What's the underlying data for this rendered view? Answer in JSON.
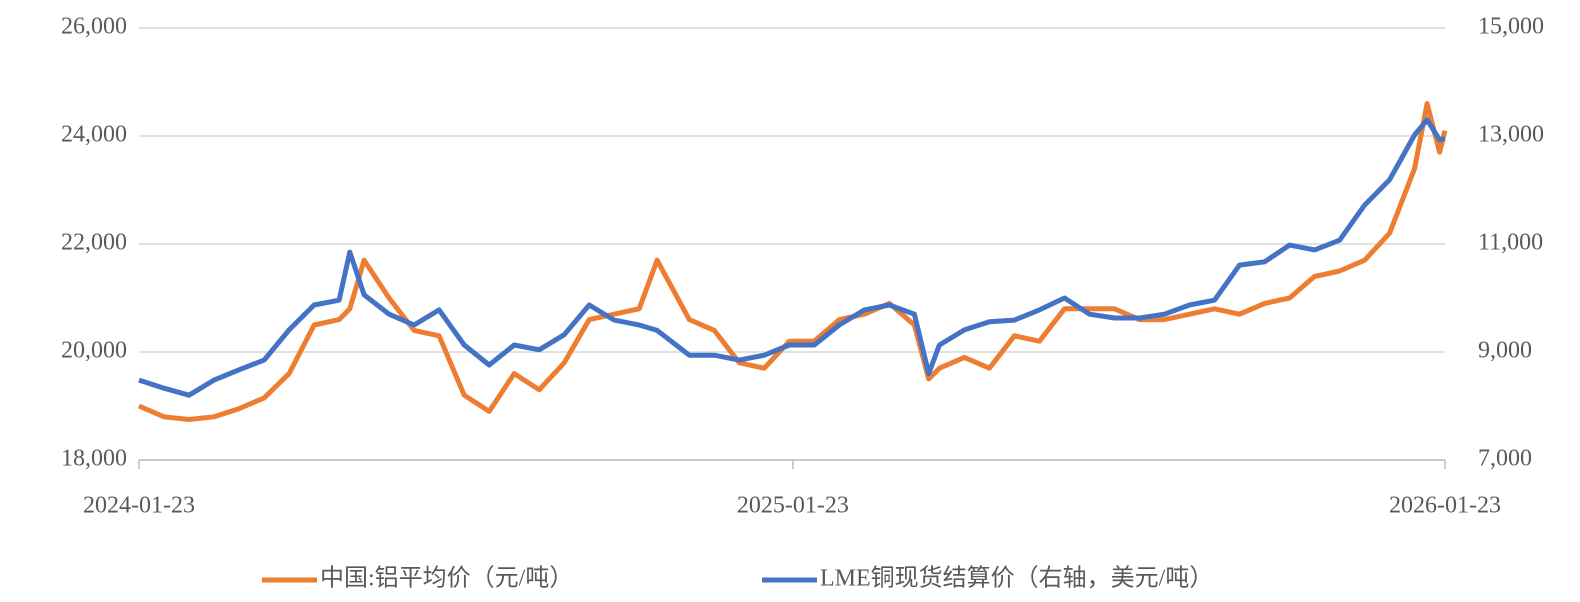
{
  "chart_data": {
    "type": "line",
    "x": [
      "2024-01-23",
      "2024-02-06",
      "2024-02-20",
      "2024-03-05",
      "2024-03-19",
      "2024-04-02",
      "2024-04-16",
      "2024-04-30",
      "2024-05-14",
      "2024-05-20",
      "2024-05-28",
      "2024-06-11",
      "2024-06-25",
      "2024-07-09",
      "2024-07-23",
      "2024-08-06",
      "2024-08-20",
      "2024-09-03",
      "2024-09-17",
      "2024-10-01",
      "2024-10-15",
      "2024-10-29",
      "2024-11-08",
      "2024-11-26",
      "2024-12-10",
      "2024-12-24",
      "2025-01-07",
      "2025-01-21",
      "2025-02-04",
      "2025-02-18",
      "2025-03-04",
      "2025-03-18",
      "2025-04-01",
      "2025-04-09",
      "2025-04-15",
      "2025-04-29",
      "2025-05-13",
      "2025-05-27",
      "2025-06-10",
      "2025-06-24",
      "2025-07-08",
      "2025-07-22",
      "2025-08-05",
      "2025-08-19",
      "2025-09-02",
      "2025-09-16",
      "2025-09-30",
      "2025-10-14",
      "2025-10-28",
      "2025-11-11",
      "2025-11-25",
      "2025-12-09",
      "2025-12-23",
      "2026-01-06",
      "2026-01-13",
      "2026-01-20",
      "2026-01-23"
    ],
    "series": [
      {
        "name": "中国:铝平均价（元/吨）",
        "color": "#ed7d31",
        "axis": "y",
        "values": [
          19000,
          18800,
          18750,
          18800,
          18950,
          19150,
          19600,
          20500,
          20600,
          20800,
          21700,
          21000,
          20400,
          20300,
          19200,
          18900,
          19600,
          19300,
          19800,
          20600,
          20700,
          20800,
          21700,
          20600,
          20400,
          19800,
          19700,
          20200,
          20200,
          20600,
          20700,
          20900,
          20500,
          19500,
          19700,
          19900,
          19700,
          20300,
          20200,
          20800,
          20800,
          20800,
          20600,
          20600,
          20700,
          20800,
          20700,
          20900,
          21000,
          21400,
          21500,
          21700,
          22200,
          23400,
          24600,
          23700,
          24100
        ]
      },
      {
        "name": "LME铜现货结算价（右轴，美元/吨）",
        "color": "#4472c4",
        "axis": "y2",
        "values": [
          8480,
          8330,
          8200,
          8480,
          8670,
          8850,
          9410,
          9870,
          9960,
          10850,
          10060,
          9700,
          9500,
          9780,
          9130,
          8760,
          9130,
          9040,
          9320,
          9870,
          9590,
          9500,
          9400,
          8940,
          8940,
          8850,
          8940,
          9130,
          9130,
          9500,
          9780,
          9870,
          9700,
          8600,
          9130,
          9410,
          9560,
          9590,
          9780,
          10000,
          9700,
          9630,
          9630,
          9700,
          9870,
          9960,
          10610,
          10670,
          10980,
          10890,
          11070,
          11720,
          12190,
          13020,
          13300,
          12930,
          12950
        ]
      }
    ],
    "xlim": [
      "2024-01-23",
      "2026-01-23"
    ],
    "xticks": [
      "2024-01-23",
      "2025-01-23",
      "2026-01-23"
    ],
    "ylim": [
      18000,
      26000
    ],
    "yticks": [
      {
        "value": 18000,
        "label": "18,000"
      },
      {
        "value": 20000,
        "label": "20,000"
      },
      {
        "value": 22000,
        "label": "22,000"
      },
      {
        "value": 24000,
        "label": "24,000"
      },
      {
        "value": 26000,
        "label": "26,000"
      }
    ],
    "y2lim": [
      7000,
      15000
    ],
    "y2ticks": [
      {
        "value": 7000,
        "label": "7,000"
      },
      {
        "value": 9000,
        "label": "9,000"
      },
      {
        "value": 11000,
        "label": "11,000"
      },
      {
        "value": 13000,
        "label": "13,000"
      },
      {
        "value": 15000,
        "label": "15,000"
      }
    ],
    "grid": true,
    "legend": "bottom"
  }
}
